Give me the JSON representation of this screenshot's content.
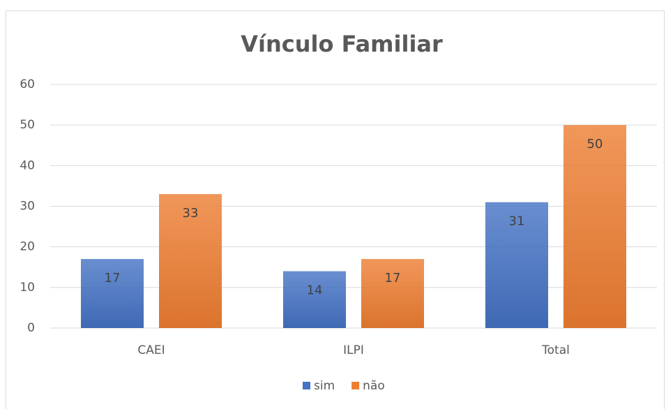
{
  "chart_data": {
    "type": "bar",
    "title": "Vínculo Familiar",
    "categories": [
      "CAEI",
      "ILPI",
      "Total"
    ],
    "series": [
      {
        "name": "sim",
        "color": "#4472c4",
        "values": [
          17,
          14,
          31
        ]
      },
      {
        "name": "não",
        "color": "#ed7d31",
        "values": [
          33,
          17,
          50
        ]
      }
    ],
    "ylim": [
      0,
      60
    ],
    "yticks": [
      0,
      10,
      20,
      30,
      40,
      50,
      60
    ],
    "grid": true,
    "legend": "bottom"
  }
}
